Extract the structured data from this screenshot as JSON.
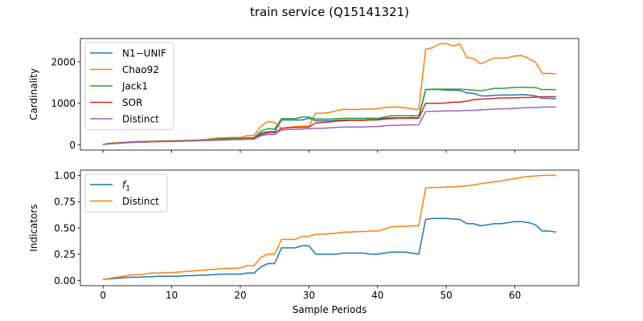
{
  "figure": {
    "title": "train service (Q15141321)"
  },
  "chart_data": [
    {
      "type": "line",
      "ylabel": "Cardinality",
      "xlabel": "",
      "xlim": [
        -3.3,
        69.3
      ],
      "ylim": [
        -125,
        2560
      ],
      "xticks": [
        0,
        10,
        20,
        30,
        40,
        50,
        60
      ],
      "yticks": [
        0,
        1000,
        2000
      ],
      "show_x_ticklabels": false,
      "legend_position": "upper left",
      "grid": false,
      "x": [
        0,
        1,
        2,
        3,
        4,
        5,
        6,
        7,
        8,
        9,
        10,
        11,
        12,
        13,
        14,
        15,
        16,
        17,
        18,
        19,
        20,
        21,
        22,
        23,
        24,
        25,
        26,
        27,
        28,
        29,
        30,
        31,
        32,
        33,
        34,
        35,
        36,
        37,
        38,
        39,
        40,
        41,
        42,
        43,
        44,
        45,
        46,
        47,
        48,
        49,
        50,
        51,
        52,
        53,
        54,
        55,
        56,
        57,
        58,
        59,
        60,
        61,
        62,
        63,
        64,
        65,
        66
      ],
      "series": [
        {
          "name": "N1−UNIF",
          "color": "#1f77b4",
          "values": [
            10,
            30,
            40,
            50,
            60,
            65,
            70,
            75,
            80,
            85,
            85,
            90,
            95,
            100,
            105,
            110,
            120,
            130,
            135,
            140,
            140,
            150,
            150,
            280,
            320,
            320,
            600,
            600,
            600,
            600,
            640,
            580,
            580,
            580,
            590,
            600,
            600,
            600,
            600,
            610,
            610,
            640,
            650,
            650,
            650,
            660,
            650,
            1330,
            1330,
            1330,
            1320,
            1320,
            1310,
            1250,
            1240,
            1180,
            1180,
            1190,
            1200,
            1200,
            1200,
            1210,
            1200,
            1180,
            1120,
            1120,
            1110
          ]
        },
        {
          "name": "Chao92",
          "color": "#ff7f0e",
          "values": [
            10,
            40,
            50,
            60,
            70,
            80,
            85,
            85,
            90,
            95,
            100,
            105,
            110,
            110,
            120,
            130,
            150,
            170,
            175,
            180,
            180,
            220,
            220,
            450,
            560,
            540,
            400,
            420,
            440,
            450,
            450,
            760,
            760,
            780,
            820,
            860,
            850,
            850,
            860,
            860,
            870,
            900,
            910,
            910,
            900,
            860,
            860,
            2300,
            2340,
            2430,
            2440,
            2380,
            2430,
            2100,
            2080,
            1950,
            2020,
            2090,
            2090,
            2100,
            2140,
            2150,
            2080,
            1990,
            1720,
            1720,
            1710
          ]
        },
        {
          "name": "Jack1",
          "color": "#2ca02c",
          "values": [
            10,
            35,
            45,
            55,
            65,
            70,
            75,
            80,
            85,
            90,
            90,
            95,
            100,
            105,
            110,
            115,
            130,
            145,
            150,
            155,
            155,
            170,
            170,
            330,
            390,
            380,
            630,
            630,
            630,
            670,
            670,
            620,
            620,
            620,
            630,
            640,
            640,
            640,
            640,
            640,
            640,
            670,
            700,
            700,
            700,
            700,
            700,
            1330,
            1340,
            1340,
            1340,
            1340,
            1340,
            1330,
            1320,
            1300,
            1330,
            1360,
            1360,
            1370,
            1380,
            1390,
            1380,
            1380,
            1330,
            1330,
            1330
          ]
        },
        {
          "name": "SOR",
          "color": "#d62728",
          "values": [
            10,
            30,
            40,
            50,
            60,
            65,
            70,
            75,
            80,
            85,
            85,
            90,
            95,
            100,
            105,
            110,
            115,
            125,
            130,
            135,
            135,
            145,
            145,
            250,
            290,
            290,
            400,
            410,
            420,
            420,
            430,
            530,
            540,
            550,
            570,
            580,
            590,
            590,
            590,
            600,
            600,
            620,
            630,
            640,
            640,
            640,
            640,
            1000,
            1000,
            1000,
            1010,
            1030,
            1030,
            1050,
            1090,
            1100,
            1110,
            1120,
            1130,
            1130,
            1130,
            1140,
            1140,
            1150,
            1160,
            1160,
            1160
          ]
        },
        {
          "name": "Distinct",
          "color": "#9467bd",
          "values": [
            10,
            25,
            35,
            45,
            55,
            60,
            65,
            70,
            75,
            80,
            80,
            85,
            90,
            95,
            100,
            105,
            110,
            115,
            120,
            125,
            125,
            135,
            135,
            220,
            250,
            250,
            360,
            370,
            370,
            380,
            390,
            400,
            400,
            410,
            420,
            430,
            430,
            430,
            430,
            440,
            440,
            460,
            470,
            470,
            480,
            480,
            480,
            800,
            810,
            810,
            820,
            820,
            820,
            830,
            830,
            840,
            850,
            860,
            870,
            870,
            880,
            890,
            900,
            900,
            910,
            910,
            910
          ]
        }
      ]
    },
    {
      "type": "line",
      "ylabel": "Indicators",
      "xlabel": "Sample Periods",
      "xlim": [
        -3.3,
        69.3
      ],
      "ylim": [
        -0.05,
        1.05
      ],
      "xticks": [
        0,
        10,
        20,
        30,
        40,
        50,
        60
      ],
      "yticks": [
        0.0,
        0.25,
        0.5,
        0.75,
        1.0
      ],
      "show_x_ticklabels": true,
      "legend_position": "upper left",
      "grid": false,
      "x": [
        0,
        1,
        2,
        3,
        4,
        5,
        6,
        7,
        8,
        9,
        10,
        11,
        12,
        13,
        14,
        15,
        16,
        17,
        18,
        19,
        20,
        21,
        22,
        23,
        24,
        25,
        26,
        27,
        28,
        29,
        30,
        31,
        32,
        33,
        34,
        35,
        36,
        37,
        38,
        39,
        40,
        41,
        42,
        43,
        44,
        45,
        46,
        47,
        48,
        49,
        50,
        51,
        52,
        53,
        54,
        55,
        56,
        57,
        58,
        59,
        60,
        61,
        62,
        63,
        64,
        65,
        66
      ],
      "series": [
        {
          "name": "f",
          "name_subscript": "1",
          "color": "#1f77b4",
          "values": [
            0.01,
            0.015,
            0.02,
            0.025,
            0.03,
            0.03,
            0.035,
            0.035,
            0.04,
            0.04,
            0.04,
            0.04,
            0.045,
            0.045,
            0.05,
            0.05,
            0.055,
            0.06,
            0.06,
            0.06,
            0.06,
            0.07,
            0.07,
            0.13,
            0.16,
            0.16,
            0.31,
            0.31,
            0.31,
            0.33,
            0.33,
            0.25,
            0.25,
            0.25,
            0.25,
            0.26,
            0.26,
            0.26,
            0.26,
            0.25,
            0.25,
            0.26,
            0.27,
            0.27,
            0.27,
            0.26,
            0.25,
            0.58,
            0.59,
            0.59,
            0.59,
            0.585,
            0.58,
            0.54,
            0.54,
            0.52,
            0.53,
            0.54,
            0.54,
            0.55,
            0.56,
            0.56,
            0.55,
            0.53,
            0.47,
            0.47,
            0.46
          ]
        },
        {
          "name": "Distinct",
          "color": "#ff7f0e",
          "values": [
            0.01,
            0.02,
            0.03,
            0.04,
            0.05,
            0.055,
            0.06,
            0.07,
            0.07,
            0.075,
            0.075,
            0.08,
            0.085,
            0.09,
            0.095,
            0.1,
            0.105,
            0.11,
            0.115,
            0.115,
            0.12,
            0.14,
            0.14,
            0.22,
            0.25,
            0.25,
            0.39,
            0.39,
            0.39,
            0.42,
            0.42,
            0.44,
            0.44,
            0.445,
            0.45,
            0.46,
            0.46,
            0.465,
            0.465,
            0.47,
            0.47,
            0.49,
            0.51,
            0.515,
            0.515,
            0.52,
            0.52,
            0.88,
            0.885,
            0.885,
            0.89,
            0.89,
            0.895,
            0.9,
            0.91,
            0.92,
            0.93,
            0.94,
            0.945,
            0.96,
            0.97,
            0.98,
            0.99,
            0.995,
            1.0,
            1.0,
            1.0
          ]
        }
      ]
    }
  ]
}
